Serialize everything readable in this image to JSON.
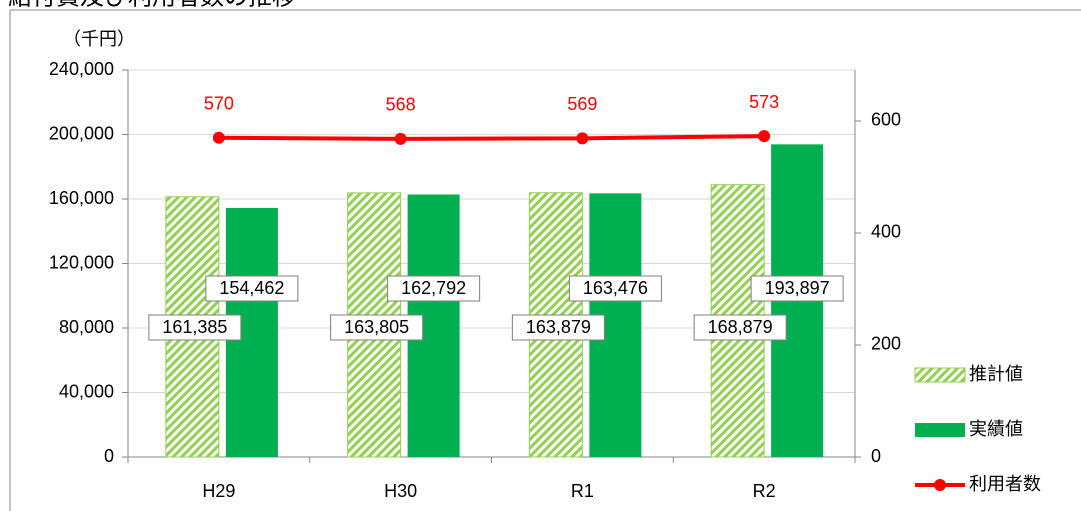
{
  "chart_data": {
    "type": "bar",
    "title": "給付費及び利用者数の推移",
    "y_axis_label": "（千円）",
    "categories": [
      "H29",
      "H30",
      "R1",
      "R2"
    ],
    "series": [
      {
        "name": "推計値",
        "color": "#92d050",
        "pattern": "hatch",
        "values": [
          161385,
          163805,
          163879,
          168879
        ],
        "value_labels": [
          "161,385",
          "163,805",
          "163,879",
          "168,879"
        ]
      },
      {
        "name": "実績値",
        "color": "#00b050",
        "values": [
          154462,
          162792,
          163476,
          193897
        ],
        "value_labels": [
          "154,462",
          "162,792",
          "163,476",
          "193,897"
        ]
      },
      {
        "name": "利用者数",
        "type": "line",
        "color": "#ff0000",
        "axis": "y2",
        "values": [
          570,
          568,
          569,
          573
        ]
      }
    ],
    "ylim": [
      0,
      240000
    ],
    "yticks": [
      0,
      {
        "value": 40000,
        "label": "40,000"
      },
      {
        "value": 80000,
        "label": "80,000"
      },
      {
        "value": 120000,
        "label": "120,000"
      },
      {
        "value": 160000,
        "label": "160,000"
      },
      {
        "value": 200000,
        "label": "200,000"
      },
      {
        "value": 240000,
        "label": "240,000"
      }
    ],
    "y2lim": [
      0,
      691
    ],
    "y2ticks": [
      0,
      200,
      400,
      600
    ],
    "grid": true,
    "legend": "right"
  }
}
